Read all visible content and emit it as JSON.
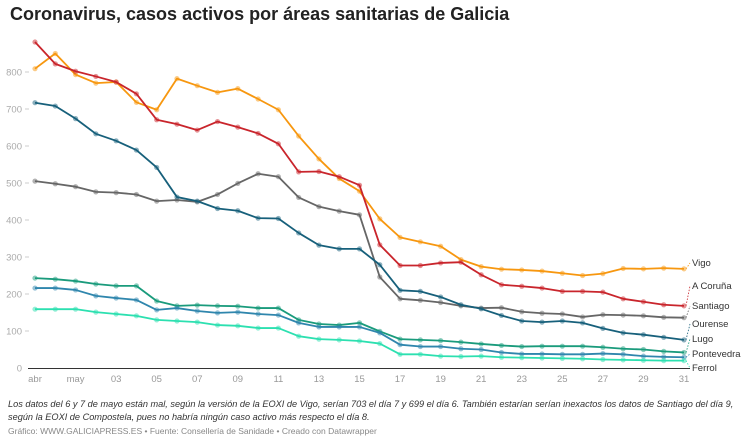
{
  "title": "Coronavirus, casos activos por áreas sanitarias de Galicia",
  "note": "Los datos del 6 y 7 de mayo están mal, según la versión de la EOXI de Vigo, serían 703 el día 7 y 699 el día 6. También estarían serían inexactos los datos de Santiago del día 9, según la EOXI de Compostela, pues no habría ningún caso activo más respecto el día 8.",
  "credit": "Gráfico: WWW.GALICIAPRESS.ES • Fuente: Consellería de Sanidade • Creado con Datawrapper",
  "chart_data": {
    "type": "line",
    "x_start": "2020-04-29",
    "x_end": "2020-05-31",
    "x_tick_labels": [
      "abr",
      "may",
      "03",
      "05",
      "07",
      "09",
      "11",
      "13",
      "15",
      "17",
      "19",
      "21",
      "23",
      "25",
      "27",
      "29",
      "31"
    ],
    "y_ticks": [
      0,
      100,
      200,
      300,
      400,
      500,
      600,
      700,
      800
    ],
    "ylim": [
      0,
      880
    ],
    "grid": false,
    "legend": "direct labels at right",
    "series": [
      {
        "name": "Vigo",
        "color": "#f7970f",
        "values": [
          809,
          850,
          793,
          770,
          773,
          718,
          698,
          782,
          763,
          745,
          755,
          727,
          698,
          627,
          565,
          512,
          478,
          403,
          353,
          341,
          329,
          293,
          274,
          267,
          265,
          262,
          256,
          250,
          255,
          269,
          268,
          270,
          268
        ]
      },
      {
        "name": "A Coruña",
        "color": "#c9252c",
        "values": [
          881,
          822,
          802,
          788,
          773,
          741,
          671,
          659,
          643,
          666,
          651,
          634,
          606,
          530,
          531,
          517,
          494,
          333,
          277,
          277,
          284,
          286,
          252,
          225,
          221,
          216,
          207,
          207,
          205,
          187,
          179,
          171,
          168
        ]
      },
      {
        "name": "Santiago",
        "color": "#666666",
        "values": [
          505,
          498,
          490,
          476,
          474,
          469,
          451,
          454,
          449,
          469,
          499,
          525,
          517,
          461,
          436,
          424,
          414,
          246,
          187,
          183,
          177,
          168,
          162,
          163,
          152,
          148,
          146,
          138,
          144,
          143,
          141,
          137,
          136
        ]
      },
      {
        "name": "Ourense",
        "color": "#17607b",
        "values": [
          717,
          708,
          674,
          633,
          614,
          589,
          542,
          462,
          451,
          431,
          425,
          405,
          404,
          365,
          332,
          322,
          322,
          279,
          210,
          207,
          192,
          171,
          160,
          142,
          127,
          124,
          127,
          122,
          107,
          95,
          90,
          83,
          76
        ]
      },
      {
        "name": "Lugo",
        "color": "#1a9b7c",
        "values": [
          243,
          240,
          235,
          227,
          222,
          222,
          181,
          168,
          170,
          168,
          167,
          162,
          162,
          130,
          119,
          116,
          122,
          99,
          78,
          76,
          74,
          70,
          65,
          61,
          58,
          59,
          59,
          59,
          56,
          52,
          50,
          45,
          42
        ]
      },
      {
        "name": "Pontevedra",
        "color": "#2f86ad",
        "values": [
          216,
          216,
          211,
          195,
          189,
          184,
          157,
          162,
          154,
          149,
          151,
          146,
          143,
          122,
          111,
          111,
          111,
          95,
          63,
          58,
          58,
          52,
          50,
          42,
          38,
          38,
          37,
          37,
          39,
          37,
          32,
          30,
          29
        ]
      },
      {
        "name": "Ferrol",
        "color": "#2ce0b0",
        "values": [
          159,
          159,
          159,
          151,
          146,
          141,
          130,
          127,
          124,
          116,
          114,
          108,
          108,
          86,
          78,
          76,
          73,
          66,
          37,
          37,
          32,
          31,
          32,
          29,
          28,
          27,
          26,
          25,
          23,
          22,
          21,
          20,
          20
        ]
      }
    ]
  }
}
